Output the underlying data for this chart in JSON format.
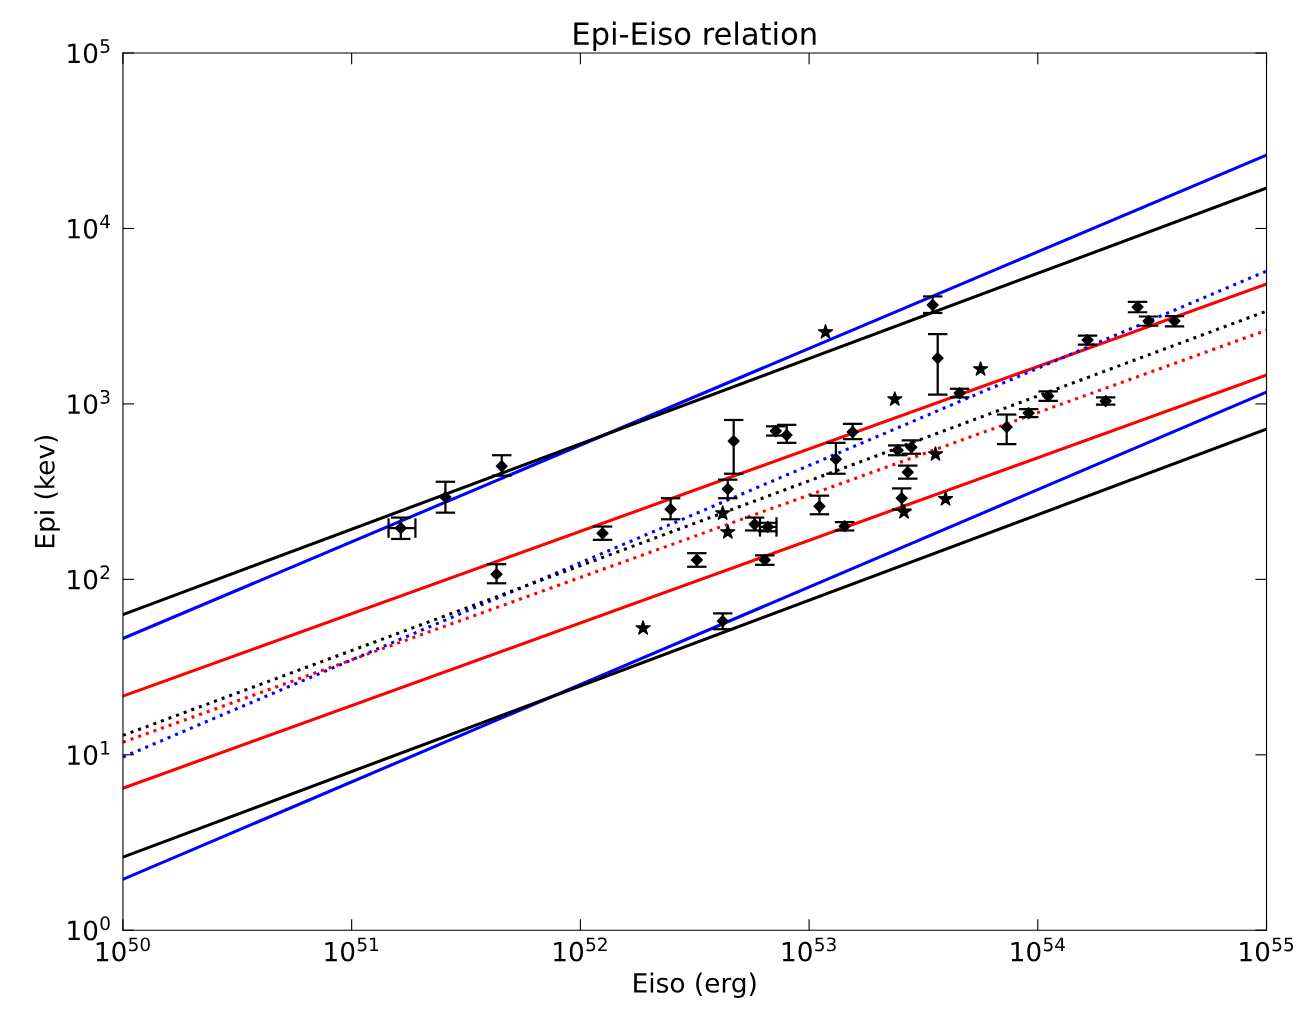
{
  "chart_data": {
    "type": "scatter",
    "title": "Epi-Eiso relation",
    "xlabel": "Eiso (erg)",
    "ylabel": "Epi (kev)",
    "log": "xy",
    "grid": false,
    "legend": false,
    "xlim": [
      1e+50,
      1e+55
    ],
    "ylim": [
      1,
      100000
    ],
    "xticks": [
      {
        "value": 1e+50,
        "label": "10$^{50}$"
      },
      {
        "value": 1e+51,
        "label": "10$^{51}$"
      },
      {
        "value": 1e+52,
        "label": "10$^{52}$"
      },
      {
        "value": 1e+53,
        "label": "10$^{53}$"
      },
      {
        "value": 1e+54,
        "label": "10$^{54}$"
      },
      {
        "value": 1e+55,
        "label": "10$^{55}$"
      }
    ],
    "yticks": [
      {
        "value": 1,
        "label": "10$^{0}$"
      },
      {
        "value": 10,
        "label": "10$^{1}$"
      },
      {
        "value": 100,
        "label": "10$^{2}$"
      },
      {
        "value": 1000,
        "label": "10$^{3}$"
      },
      {
        "value": 10000,
        "label": "10$^{4}$"
      },
      {
        "value": 100000,
        "label": "10$^{5}$"
      }
    ],
    "series": [
      {
        "type": "line",
        "color": "#0000ff",
        "line_style": "solid",
        "x": [
          1e+50,
          1e+55
        ],
        "values": [
          46,
          26200
        ]
      },
      {
        "type": "line",
        "color": "#000000",
        "line_style": "solid",
        "x": [
          1e+50,
          1e+55
        ],
        "values": [
          63,
          17000
        ]
      },
      {
        "type": "line",
        "color": "#ff0000",
        "line_style": "solid",
        "x": [
          1e+50,
          1e+55
        ],
        "values": [
          21.6,
          4820
        ]
      },
      {
        "type": "line",
        "color": "#0000ff",
        "line_style": "dotted",
        "x": [
          1e+50,
          1e+55
        ],
        "values": [
          9.7,
          5720
        ]
      },
      {
        "type": "line",
        "color": "#000000",
        "line_style": "dotted",
        "x": [
          1e+50,
          1e+55
        ],
        "values": [
          12.9,
          3380
        ]
      },
      {
        "type": "line",
        "color": "#ff0000",
        "line_style": "dotted",
        "x": [
          1e+50,
          1e+55
        ],
        "values": [
          11.8,
          2630
        ]
      },
      {
        "type": "line",
        "color": "#ff0000",
        "line_style": "solid",
        "x": [
          1e+50,
          1e+55
        ],
        "values": [
          6.45,
          1460
        ]
      },
      {
        "type": "line",
        "color": "#0000ff",
        "line_style": "solid",
        "x": [
          1e+50,
          1e+55
        ],
        "values": [
          1.95,
          1167
        ]
      },
      {
        "type": "line",
        "color": "#000000",
        "line_style": "solid",
        "x": [
          1e+50,
          1e+55
        ],
        "values": [
          2.61,
          718
        ]
      },
      {
        "color": "#000000",
        "marker": "diamond",
        "x": [
          1.64e+51,
          2.57e+51,
          4.53e+51,
          4.3e+51,
          1.25e+52,
          2.48e+52,
          3.23e+52,
          4.19e+52,
          4.41e+52,
          4.68e+52,
          5.78e+52,
          6.6e+52,
          6.4e+52,
          7.15e+52,
          7.98e+52,
          1.11e+53,
          1.31e+53,
          1.43e+53,
          1.55e+53,
          2.44e+53,
          2.54e+53,
          2.7e+53,
          2.8e+53,
          3.47e+53,
          3.65e+53,
          4.55e+53,
          7.31e+53,
          9.12e+53,
          1.11e+54,
          1.65e+54,
          1.98e+54,
          2.73e+54,
          3.05e+54,
          3.96e+54
        ],
        "values": [
          196,
          294,
          442,
          107,
          183,
          251,
          129,
          57.8,
          327,
          614,
          206,
          199,
          129,
          700,
          664,
          261,
          484,
          201,
          691,
          545,
          290,
          408,
          567,
          3658,
          1824,
          1153,
          738,
          887,
          1108,
          2312,
          1038,
          3565,
          2966,
          2966
        ],
        "errors": [
          [
            170,
            225
          ],
          [
            240,
            360
          ],
          [
            390,
            510
          ],
          [
            95,
            122
          ],
          [
            168,
            200
          ],
          [
            220,
            290
          ],
          [
            118,
            141
          ],
          [
            52,
            64
          ],
          [
            290,
            370
          ],
          [
            400,
            810
          ],
          [
            190,
            225
          ],
          [
            188,
            210
          ],
          [
            121,
            137
          ],
          [
            660,
            745
          ],
          [
            600,
            760
          ],
          [
            235,
            300
          ],
          [
            400,
            600
          ],
          [
            190,
            212
          ],
          [
            630,
            770
          ],
          [
            510,
            580
          ],
          [
            250,
            330
          ],
          [
            375,
            445
          ],
          [
            520,
            620
          ],
          [
            3300,
            4100
          ],
          [
            1130,
            2500
          ],
          [
            1090,
            1220
          ],
          [
            590,
            870
          ],
          [
            840,
            935
          ],
          [
            1040,
            1180
          ],
          [
            2180,
            2450
          ],
          [
            990,
            1090
          ],
          [
            3330,
            3820
          ],
          [
            2790,
            3150
          ],
          [
            2770,
            3170
          ]
        ],
        "xerrors": [
          [
            1.45e+51,
            1.9e+51
          ],
          null,
          null,
          null,
          null,
          null,
          null,
          null,
          null,
          null,
          null,
          [
            6.1e+52,
            7.2e+52
          ],
          null,
          null,
          null,
          null,
          null,
          null,
          null,
          null,
          null,
          null,
          null,
          null,
          null,
          null,
          null,
          null,
          null,
          null,
          null,
          null,
          null,
          null
        ]
      },
      {
        "color": "#000000",
        "marker": "star",
        "x": [
          1.88e+52,
          4.19e+52,
          4.41e+52,
          1.18e+53,
          2.37e+53,
          2.6e+53,
          3.57e+53,
          3.95e+53,
          5.62e+53
        ],
        "values": [
          52.7,
          238,
          186,
          2567,
          1064,
          242,
          517,
          287,
          1579
        ]
      }
    ]
  }
}
